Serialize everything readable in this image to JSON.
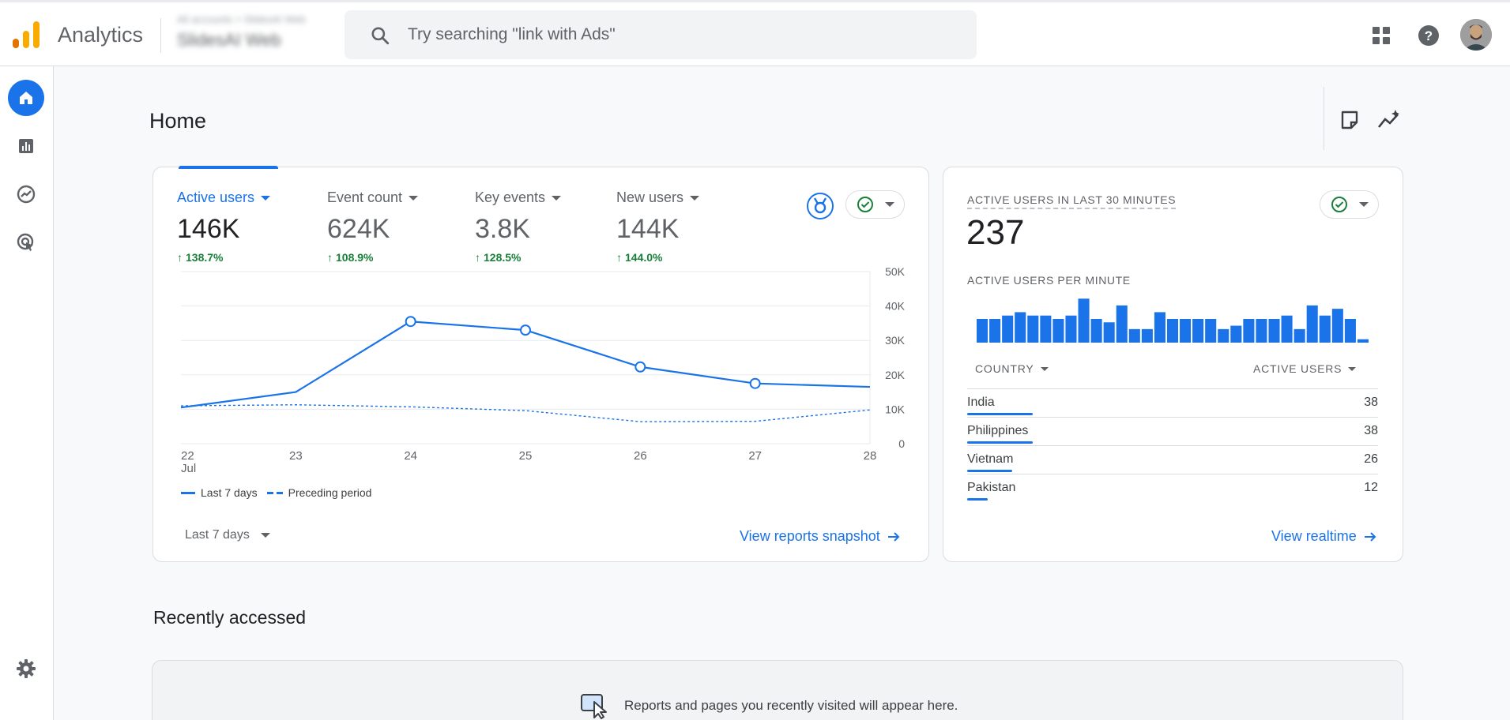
{
  "app": {
    "name": "Analytics"
  },
  "account": {
    "line1": "All accounts > SlidesAI Web",
    "line2": "SlidesAI Web"
  },
  "search": {
    "placeholder": "Try searching \"link with Ads\""
  },
  "icons": {
    "logo": "analytics-logo-icon",
    "search": "search-icon",
    "apps": "apps-grid-icon",
    "help": "help-icon",
    "home": "home-icon",
    "reports": "reports-icon",
    "explore": "explore-icon",
    "advertising": "advertising-icon",
    "settings": "gear-icon"
  },
  "colors": {
    "accent": "#1a73e8",
    "positive": "#188038",
    "logo_orange": "#f9ab00",
    "logo_dark": "#e37400"
  },
  "page": {
    "title": "Home"
  },
  "overview": {
    "metrics": [
      {
        "label": "Active users",
        "value": "146K",
        "delta": "138.7%",
        "active": true
      },
      {
        "label": "Event count",
        "value": "624K",
        "delta": "108.9%",
        "active": false
      },
      {
        "label": "Key events",
        "value": "3.8K",
        "delta": "128.5%",
        "active": false
      },
      {
        "label": "New users",
        "value": "144K",
        "delta": "144.0%",
        "active": false
      }
    ],
    "legend": {
      "current": "Last 7 days",
      "previous": "Preceding period"
    },
    "date_range": "Last 7 days",
    "link": "View reports snapshot"
  },
  "realtime": {
    "title": "ACTIVE USERS IN LAST 30 MINUTES",
    "value": "237",
    "per_minute_label": "ACTIVE USERS PER MINUTE",
    "table_headers": {
      "country": "COUNTRY",
      "users": "ACTIVE USERS"
    },
    "rows": [
      {
        "country": "India",
        "users": "38",
        "share": 0.298
      },
      {
        "country": "Philippines",
        "users": "38",
        "share": 0.298
      },
      {
        "country": "Vietnam",
        "users": "26",
        "share": 0.204
      },
      {
        "country": "Pakistan",
        "users": "12",
        "share": 0.094
      }
    ],
    "link": "View realtime"
  },
  "recent": {
    "title": "Recently accessed",
    "message": "Reports and pages you recently visited will appear here."
  },
  "chart_data": [
    {
      "type": "line",
      "x": [
        "22 Jul",
        "23",
        "24",
        "25",
        "26",
        "27",
        "28"
      ],
      "xlabel": "",
      "ylabel": "",
      "ylim": [
        0,
        50000
      ],
      "yticks": [
        "0",
        "10K",
        "20K",
        "30K",
        "40K",
        "50K"
      ],
      "grid": true,
      "legend_position": "bottom-left",
      "series": [
        {
          "name": "Last 7 days",
          "style": "solid",
          "values": [
            10500,
            15000,
            35500,
            33000,
            22300,
            17500,
            16500
          ]
        },
        {
          "name": "Preceding period",
          "style": "dashed",
          "values": [
            11000,
            11300,
            10700,
            9600,
            6400,
            6500,
            9800
          ]
        }
      ]
    },
    {
      "type": "bar",
      "title": "ACTIVE USERS PER MINUTE",
      "values": [
        7,
        7,
        8,
        9,
        8,
        8,
        7,
        8,
        13,
        7,
        6,
        11,
        4,
        4,
        9,
        7,
        7,
        7,
        7,
        4,
        5,
        7,
        7,
        7,
        8,
        4,
        11,
        8,
        10,
        7,
        1
      ],
      "ylim": [
        0,
        14
      ]
    }
  ]
}
